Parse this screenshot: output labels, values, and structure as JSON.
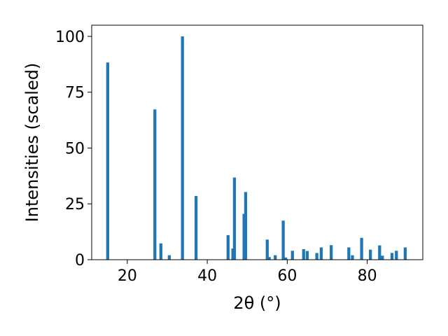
{
  "chart_data": {
    "type": "bar",
    "title": "",
    "xlabel": "2θ (°)",
    "ylabel": "Intensities (scaled)",
    "xlim": [
      11.1,
      93.9
    ],
    "ylim": [
      0,
      105
    ],
    "xticks": [
      20,
      40,
      60,
      80
    ],
    "yticks": [
      0,
      25,
      50,
      75,
      100
    ],
    "xtick_labels": [
      "20",
      "40",
      "60",
      "80"
    ],
    "ytick_labels": [
      "0",
      "25",
      "50",
      "75",
      "100"
    ],
    "grid": false,
    "bar_color": "#1f77b4",
    "bar_width": 0.75,
    "x": [
      15.1,
      26.9,
      28.4,
      30.5,
      33.8,
      37.2,
      45.2,
      46.4,
      46.8,
      49.2,
      49.6,
      55.0,
      55.5,
      57.0,
      59.0,
      59.6,
      61.3,
      64.1,
      65.0,
      67.4,
      68.5,
      71.0,
      75.4,
      76.3,
      78.6,
      80.8,
      83.1,
      83.8,
      86.2,
      87.3,
      89.5
    ],
    "values": [
      88.3,
      67.3,
      7.3,
      2.0,
      100.0,
      28.5,
      11.0,
      5.0,
      36.8,
      20.5,
      30.3,
      9.0,
      1.2,
      2.0,
      17.5,
      1.0,
      4.0,
      4.7,
      3.9,
      3.0,
      5.5,
      6.5,
      5.5,
      2.0,
      9.8,
      4.5,
      6.4,
      1.8,
      3.0,
      4.0,
      5.5
    ]
  }
}
